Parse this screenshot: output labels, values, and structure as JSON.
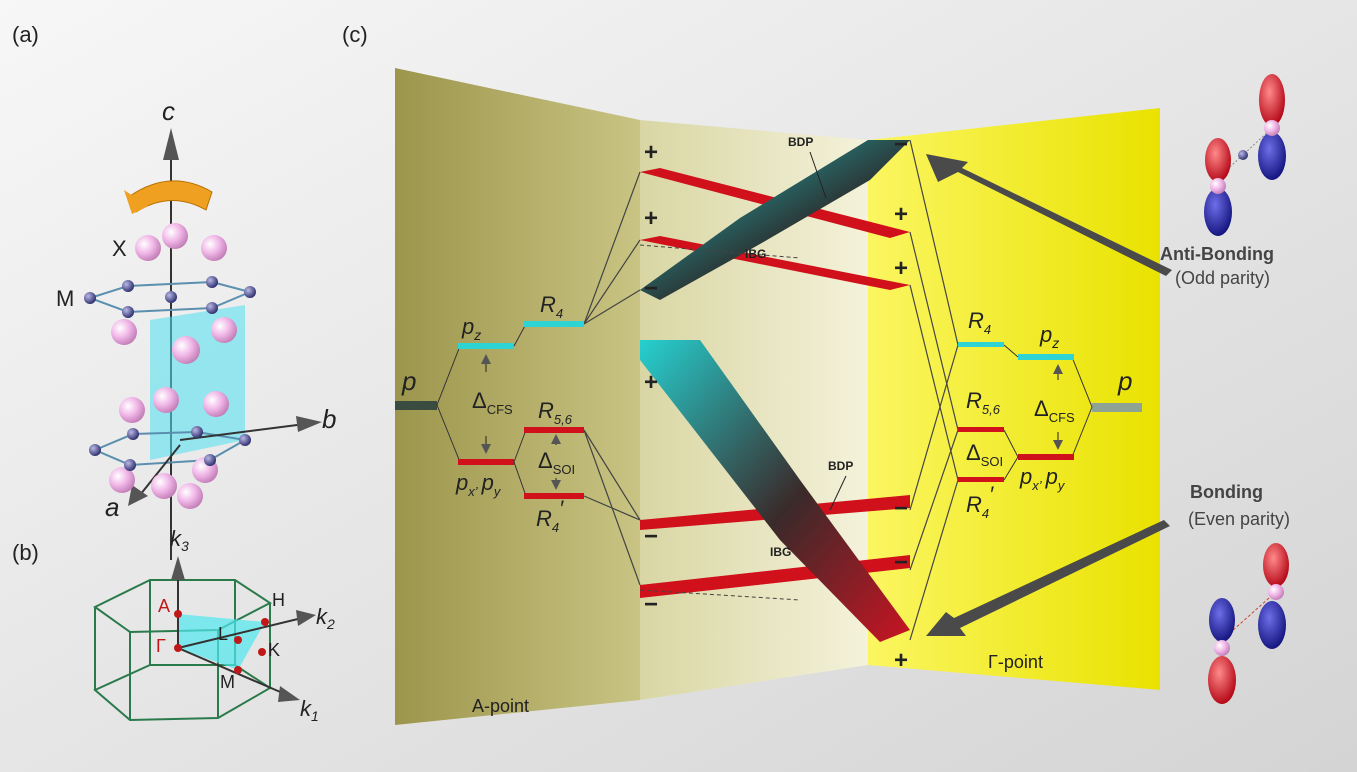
{
  "panels": {
    "a": "(a)",
    "b": "(b)",
    "c": "(c)"
  },
  "crystal": {
    "axis_c": "c",
    "axis_b": "b",
    "axis_a": "a",
    "site_x": "X",
    "site_m": "M"
  },
  "brillouin": {
    "k3": "k",
    "k3_sub": "3",
    "k2": "k",
    "k2_sub": "2",
    "k1": "k",
    "k1_sub": "1",
    "A": "A",
    "Gamma": "Γ",
    "H": "H",
    "L": "L",
    "K": "K",
    "M": "M"
  },
  "a_side": {
    "p": "p",
    "pz": "p",
    "pz_sub": "z",
    "delta_cfs": "Δ",
    "delta_cfs_sub": "CFS",
    "pxy_1": "p",
    "pxy_1_sub": "x’",
    "pxy_2": "p",
    "pxy_2_sub": "y",
    "R4": "R",
    "R4_sub": "4",
    "R56": "R",
    "R56_sub": "5,6",
    "delta_soi": "Δ",
    "delta_soi_sub": "SOI",
    "R4p": "R",
    "R4p_sub": "4",
    "prime": "′",
    "footer": "A-point"
  },
  "gamma_side": {
    "p": "p",
    "pz": "p",
    "pz_sub": "z",
    "delta_cfs": "Δ",
    "delta_cfs_sub": "CFS",
    "pxy_1": "p",
    "pxy_1_sub": "x’",
    "pxy_2": "p",
    "pxy_2_sub": "y",
    "R4": "R",
    "R4_sub": "4",
    "R56": "R",
    "R56_sub": "5,6",
    "delta_soi": "Δ",
    "delta_soi_sub": "SOI",
    "R4p": "R",
    "R4p_sub": "4",
    "prime": "′",
    "footer": "Γ-point"
  },
  "signs_left": [
    "+",
    "+",
    "−",
    "+",
    "−",
    "−"
  ],
  "signs_right": [
    "−",
    "+",
    "+",
    "−",
    "−",
    "+"
  ],
  "annotations": {
    "bdp_top": "BDP",
    "ibg_top": "IBG",
    "bdp_bottom": "BDP",
    "ibg_bottom": "IBG"
  },
  "bonding": {
    "anti_title": "Anti-Bonding",
    "anti_sub": "(Odd parity)",
    "bond_title": "Bonding",
    "bond_sub": "(Even parity)"
  },
  "colors": {
    "a_wall": "#a8a157",
    "gamma_wall": "#f2ec1c",
    "cyan": "#2ed3d3",
    "red": "#d0101a",
    "arrow": "#444444"
  }
}
